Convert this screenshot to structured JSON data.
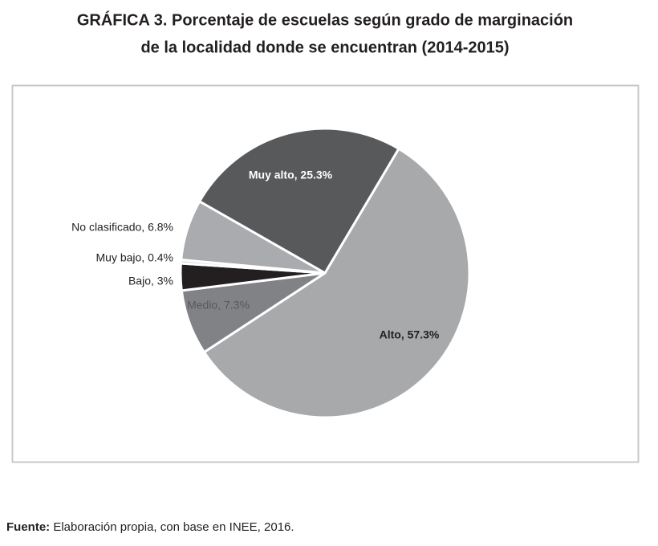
{
  "chart_data": {
    "type": "pie",
    "title": [
      "GRÁFICA 3. Porcentaje de escuelas según grado de marginación",
      "de la localidad donde se encuentran (2014-2015)"
    ],
    "values": [
      57.3,
      7.3,
      3,
      0.4,
      6.8,
      25.3
    ],
    "value_labels": [
      "Alto, 57.3%",
      "Medio, 7.3%",
      "Bajo, 3%",
      "Muy bajo, 0.4%",
      "No clasificado, 6.8%",
      "Muy alto, 25.3%"
    ],
    "colors": [
      "#a7a9ab",
      "#808285",
      "#231f20",
      "#d9dadb",
      "#a9abae",
      "#58595b"
    ]
  },
  "source": {
    "label": "Fuente:",
    "text": "Elaboración propia, con base en INEE, 2016."
  }
}
